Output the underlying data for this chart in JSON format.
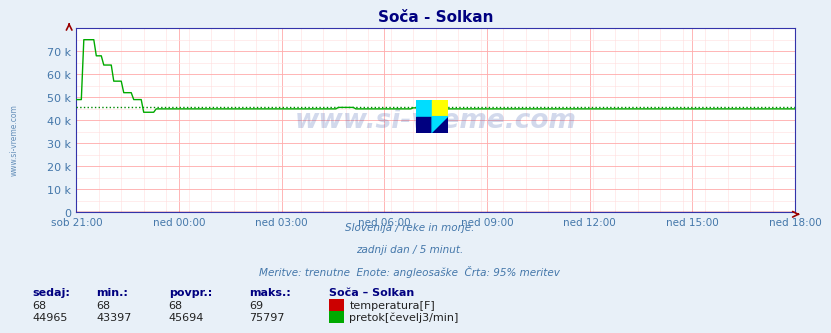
{
  "title": "Soča - Solkan",
  "bg_color": "#e8f0f8",
  "plot_bg_color": "#ffffff",
  "grid_color_major": "#ffaaaa",
  "grid_color_minor": "#ffdddd",
  "axis_color": "#3333aa",
  "title_color": "#000080",
  "label_color": "#4477aa",
  "ylabel_ticks": [
    0,
    10000,
    20000,
    30000,
    40000,
    50000,
    60000,
    70000
  ],
  "ylabel_labels": [
    "0",
    "10 k",
    "20 k",
    "30 k",
    "40 k",
    "50 k",
    "60 k",
    "70 k"
  ],
  "ylim": [
    0,
    80000
  ],
  "xtick_labels": [
    "sob 21:00",
    "ned 00:00",
    "ned 03:00",
    "ned 06:00",
    "ned 09:00",
    "ned 12:00",
    "ned 15:00",
    "ned 18:00"
  ],
  "n_points": 289,
  "subtitle1": "Slovenija / reke in morje.",
  "subtitle2": "zadnji dan / 5 minut.",
  "subtitle3": "Meritve: trenutne  Enote: angleosaške  Črta: 95% meritev",
  "watermark": "www.si-vreme.com",
  "flow_avg": 45694,
  "flow_color": "#00aa00",
  "temp_color": "#cc0000",
  "flow_avg_line_color": "#008800",
  "sidebar_text": "www.si-vreme.com",
  "sidebar_color": "#4477aa",
  "sedaj_flow": 44965,
  "min_flow": 43397,
  "avg_flow": 45694,
  "max_flow": 75797,
  "sedaj_temp": 68,
  "min_temp": 68,
  "avg_temp": 68,
  "max_temp": 69
}
